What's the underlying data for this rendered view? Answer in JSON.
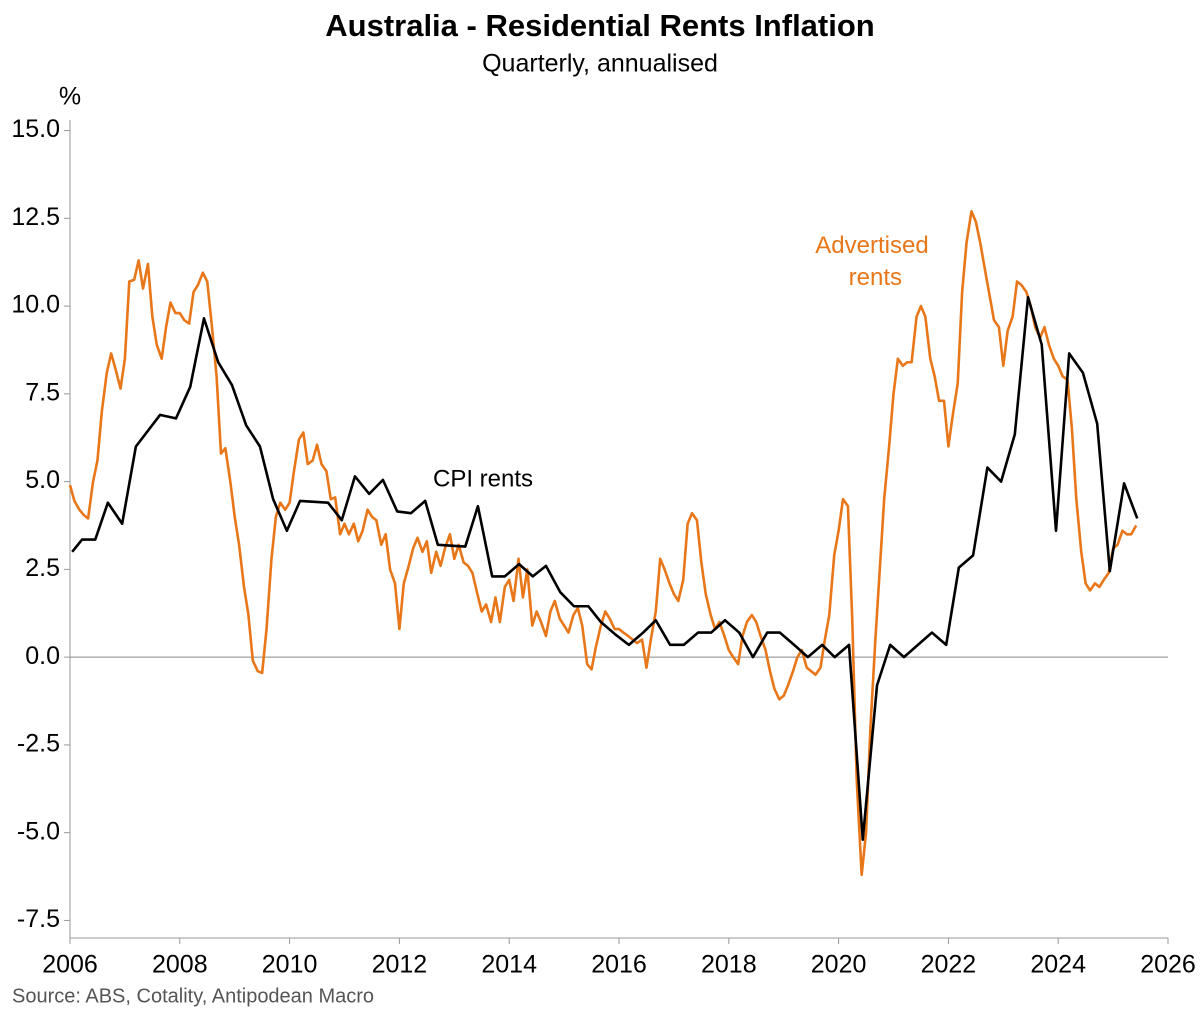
{
  "chart_data": {
    "type": "line",
    "title": "Australia - Residential Rents Inflation",
    "subtitle": "Quarterly, annualised",
    "y_axis_label": "%",
    "source": "Source: ABS, Cotality, Antipodean Macro",
    "xlim": [
      2006,
      2026
    ],
    "xticks": [
      2006,
      2008,
      2010,
      2012,
      2014,
      2016,
      2018,
      2020,
      2022,
      2024,
      2026
    ],
    "ylim": [
      -8,
      15.3
    ],
    "yticks": [
      {
        "value": -7.5,
        "label": "-7.5"
      },
      {
        "value": -5,
        "label": "-5.0"
      },
      -2.5,
      {
        "value": 0,
        "label": "0.0"
      },
      2.5,
      {
        "value": 5,
        "label": "5.0"
      },
      7.5,
      {
        "value": 10,
        "label": "10.0"
      },
      12.5,
      {
        "value": 15,
        "label": "15.0"
      }
    ],
    "grid": false,
    "series": [
      {
        "name": "Advertised rents",
        "color": "#e8771a",
        "x": [
          2006.0,
          2006.08,
          2006.17,
          2006.25,
          2006.33,
          2006.42,
          2006.5,
          2006.58,
          2006.67,
          2006.75,
          2006.83,
          2006.92,
          2007.0,
          2007.08,
          2007.17,
          2007.25,
          2007.33,
          2007.42,
          2007.5,
          2007.58,
          2007.67,
          2007.75,
          2007.83,
          2007.92,
          2008.0,
          2008.08,
          2008.17,
          2008.25,
          2008.33,
          2008.42,
          2008.5,
          2008.58,
          2008.67,
          2008.75,
          2008.83,
          2008.92,
          2009.0,
          2009.08,
          2009.17,
          2009.25,
          2009.33,
          2009.42,
          2009.5,
          2009.58,
          2009.67,
          2009.75,
          2009.83,
          2009.92,
          2010.0,
          2010.08,
          2010.17,
          2010.25,
          2010.33,
          2010.42,
          2010.5,
          2010.58,
          2010.67,
          2010.75,
          2010.83,
          2010.92,
          2011.0,
          2011.08,
          2011.17,
          2011.25,
          2011.33,
          2011.42,
          2011.5,
          2011.58,
          2011.67,
          2011.75,
          2011.83,
          2011.92,
          2012.0,
          2012.08,
          2012.17,
          2012.25,
          2012.33,
          2012.42,
          2012.5,
          2012.58,
          2012.67,
          2012.75,
          2012.83,
          2012.92,
          2013.0,
          2013.08,
          2013.17,
          2013.25,
          2013.33,
          2013.42,
          2013.5,
          2013.58,
          2013.67,
          2013.75,
          2013.83,
          2013.92,
          2014.0,
          2014.08,
          2014.17,
          2014.25,
          2014.33,
          2014.42,
          2014.5,
          2014.58,
          2014.67,
          2014.75,
          2014.83,
          2014.92,
          2015.0,
          2015.08,
          2015.17,
          2015.25,
          2015.33,
          2015.42,
          2015.5,
          2015.58,
          2015.67,
          2015.75,
          2015.83,
          2015.92,
          2016.0,
          2016.08,
          2016.17,
          2016.25,
          2016.33,
          2016.42,
          2016.5,
          2016.58,
          2016.67,
          2016.75,
          2016.83,
          2016.92,
          2017.0,
          2017.08,
          2017.17,
          2017.25,
          2017.33,
          2017.42,
          2017.5,
          2017.58,
          2017.67,
          2017.75,
          2017.83,
          2017.92,
          2018.0,
          2018.08,
          2018.17,
          2018.25,
          2018.33,
          2018.42,
          2018.5,
          2018.58,
          2018.67,
          2018.75,
          2018.83,
          2018.92,
          2019.0,
          2019.08,
          2019.17,
          2019.25,
          2019.33,
          2019.42,
          2019.5,
          2019.58,
          2019.67,
          2019.75,
          2019.83,
          2019.92,
          2020.0,
          2020.08,
          2020.17,
          2020.25,
          2020.33,
          2020.42,
          2020.5,
          2020.58,
          2020.67,
          2020.75,
          2020.83,
          2020.92,
          2021.0,
          2021.08,
          2021.17,
          2021.25,
          2021.33,
          2021.42,
          2021.5,
          2021.58,
          2021.67,
          2021.75,
          2021.83,
          2021.92,
          2022.0,
          2022.08,
          2022.17,
          2022.25,
          2022.33,
          2022.42,
          2022.5,
          2022.58,
          2022.67,
          2022.75,
          2022.83,
          2022.92,
          2023.0,
          2023.08,
          2023.17,
          2023.25,
          2023.33,
          2023.42,
          2023.5,
          2023.58,
          2023.67,
          2023.75,
          2023.83,
          2023.92,
          2024.0,
          2024.08,
          2024.17,
          2024.25,
          2024.33,
          2024.42,
          2024.5,
          2024.58,
          2024.67,
          2024.75,
          2024.83,
          2024.92,
          2025.0,
          2025.08,
          2025.17,
          2025.25,
          2025.33,
          2025.42
        ],
        "values": [
          4.9,
          4.45,
          4.2,
          4.05,
          3.95,
          5.0,
          5.6,
          7.0,
          8.1,
          8.65,
          8.2,
          7.65,
          8.5,
          10.7,
          10.75,
          11.3,
          10.5,
          11.2,
          9.7,
          8.9,
          8.5,
          9.4,
          10.1,
          9.8,
          9.8,
          9.6,
          9.5,
          10.4,
          10.6,
          10.95,
          10.7,
          9.5,
          8.0,
          5.8,
          5.95,
          5.0,
          4.0,
          3.2,
          2.0,
          1.2,
          -0.1,
          -0.4,
          -0.45,
          0.8,
          2.8,
          4.0,
          4.4,
          4.2,
          4.4,
          5.3,
          6.2,
          6.4,
          5.5,
          5.6,
          6.05,
          5.5,
          5.3,
          4.5,
          4.55,
          3.5,
          3.8,
          3.5,
          3.8,
          3.3,
          3.6,
          4.2,
          4.0,
          3.9,
          3.2,
          3.5,
          2.5,
          2.1,
          0.8,
          2.1,
          2.6,
          3.1,
          3.4,
          3.0,
          3.3,
          2.4,
          3.0,
          2.6,
          3.1,
          3.5,
          2.8,
          3.2,
          2.7,
          2.6,
          2.4,
          1.8,
          1.3,
          1.5,
          1.0,
          1.7,
          1.0,
          2.0,
          2.2,
          1.6,
          2.8,
          1.7,
          2.5,
          0.9,
          1.3,
          1.0,
          0.6,
          1.3,
          1.6,
          1.1,
          0.9,
          0.7,
          1.2,
          1.4,
          0.9,
          -0.2,
          -0.35,
          0.3,
          0.9,
          1.3,
          1.1,
          0.8,
          0.8,
          0.7,
          0.6,
          0.5,
          0.4,
          0.5,
          -0.3,
          0.5,
          1.3,
          2.8,
          2.5,
          2.1,
          1.8,
          1.6,
          2.2,
          3.8,
          4.1,
          3.9,
          2.7,
          1.8,
          1.2,
          0.8,
          1.0,
          0.6,
          0.2,
          0.0,
          -0.2,
          0.6,
          1.0,
          1.2,
          1.0,
          0.6,
          0.2,
          -0.4,
          -0.9,
          -1.2,
          -1.1,
          -0.8,
          -0.4,
          0.0,
          0.2,
          -0.3,
          -0.4,
          -0.5,
          -0.3,
          0.5,
          1.2,
          2.9,
          3.6,
          4.5,
          4.3,
          1.0,
          -3.5,
          -6.2,
          -5.0,
          -2.0,
          0.5,
          2.5,
          4.5,
          6.0,
          7.5,
          8.5,
          8.3,
          8.4,
          8.4,
          9.7,
          10.0,
          9.7,
          8.5,
          8.0,
          7.3,
          7.3,
          6.0,
          6.9,
          7.8,
          10.4,
          11.8,
          12.7,
          12.4,
          11.8,
          11.0,
          10.3,
          9.6,
          9.4,
          8.3,
          9.3,
          9.7,
          10.7,
          10.6,
          10.4,
          10.0,
          9.4,
          9.1,
          9.4,
          8.9,
          8.5,
          8.3,
          8.0,
          7.9,
          6.5,
          4.5,
          3.0,
          2.1,
          1.9,
          2.1,
          2.0,
          2.2,
          2.4,
          3.1,
          3.2,
          3.6,
          3.5,
          3.5,
          3.75
        ]
      },
      {
        "name": "CPI rents",
        "color": "#000000",
        "x": [
          2006.04,
          2006.22,
          2006.46,
          2006.69,
          2006.95,
          2007.2,
          2007.64,
          2007.93,
          2008.19,
          2008.44,
          2008.7,
          2008.95,
          2009.21,
          2009.46,
          2009.7,
          2009.95,
          2010.19,
          2010.7,
          2010.95,
          2011.19,
          2011.45,
          2011.7,
          2011.96,
          2012.21,
          2012.47,
          2012.7,
          2013.2,
          2013.43,
          2013.69,
          2013.92,
          2014.18,
          2014.43,
          2014.67,
          2014.93,
          2015.18,
          2015.44,
          2015.67,
          2015.93,
          2016.18,
          2016.44,
          2016.67,
          2016.93,
          2017.18,
          2017.44,
          2017.68,
          2017.93,
          2018.19,
          2018.44,
          2018.7,
          2018.93,
          2019.19,
          2019.44,
          2019.7,
          2019.93,
          2020.19,
          2020.44,
          2020.7,
          2020.94,
          2021.19,
          2021.7,
          2021.96,
          2022.19,
          2022.45,
          2022.71,
          2022.96,
          2023.21,
          2023.45,
          2023.7,
          2023.96,
          2024.2,
          2024.45,
          2024.71,
          2024.94,
          2025.2,
          2025.44
        ],
        "values": [
          3.0,
          3.35,
          3.35,
          4.4,
          3.8,
          6.0,
          6.9,
          6.8,
          7.7,
          9.65,
          8.4,
          7.75,
          6.6,
          6.0,
          4.5,
          3.6,
          4.45,
          4.4,
          3.9,
          5.15,
          4.65,
          5.05,
          4.15,
          4.1,
          4.45,
          3.2,
          3.15,
          4.3,
          2.3,
          2.3,
          2.65,
          2.3,
          2.6,
          1.85,
          1.45,
          1.45,
          1.0,
          0.65,
          0.35,
          0.7,
          1.05,
          0.35,
          0.35,
          0.7,
          0.7,
          1.05,
          0.7,
          0.0,
          0.7,
          0.7,
          0.35,
          0.0,
          0.35,
          0.0,
          0.35,
          -5.2,
          -0.8,
          0.35,
          0.0,
          0.7,
          0.35,
          2.55,
          2.9,
          5.4,
          5.0,
          6.35,
          10.25,
          8.9,
          3.6,
          8.65,
          8.1,
          6.65,
          2.45,
          4.95,
          3.95
        ]
      }
    ]
  }
}
